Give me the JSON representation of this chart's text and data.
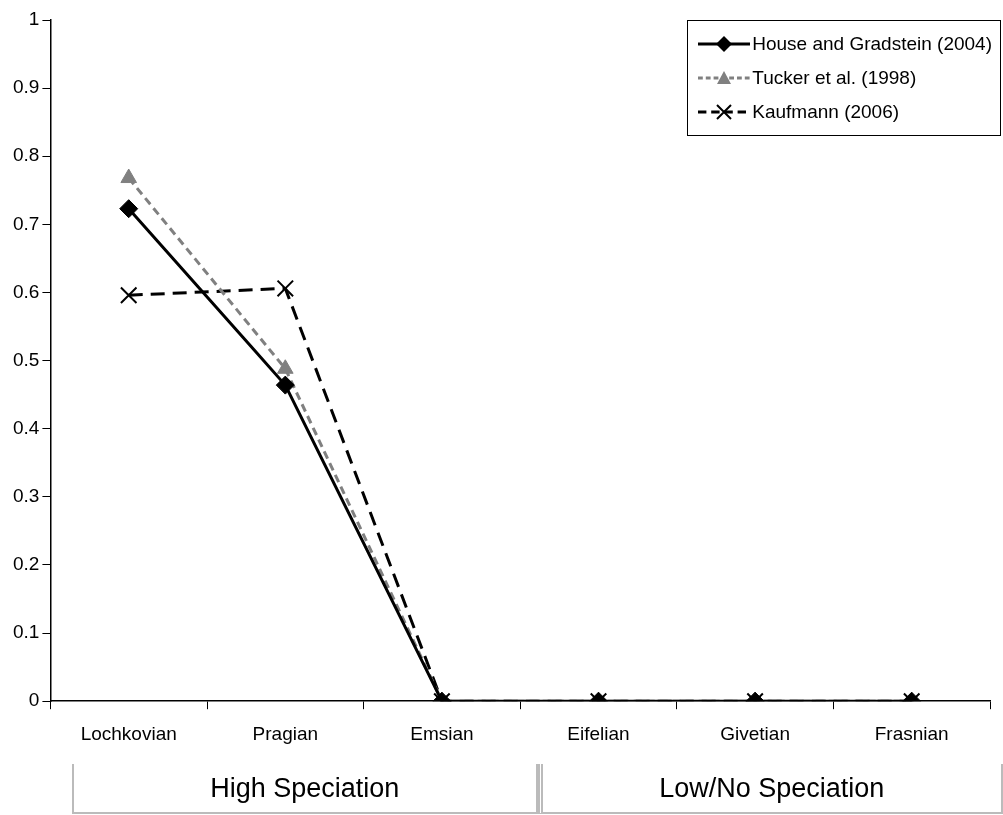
{
  "chart_data": {
    "type": "line",
    "categories": [
      "Lochkovian",
      "Pragian",
      "Emsian",
      "Eifelian",
      "Givetian",
      "Frasnian"
    ],
    "series": [
      {
        "name": "House and Gradstein (2004)",
        "color": "#000000",
        "marker": "diamond",
        "line_style": "solid",
        "values": [
          0.723,
          0.464,
          0,
          0,
          0,
          0
        ]
      },
      {
        "name": "Tucker et al. (1998)",
        "color": "#808080",
        "marker": "triangle",
        "line_style": "dashed",
        "values": [
          0.768,
          0.488,
          0,
          0,
          0,
          0
        ]
      },
      {
        "name": "Kaufmann (2006)",
        "color": "#000000",
        "marker": "cross",
        "line_style": "dashed",
        "values": [
          0.596,
          0.606,
          0,
          0,
          0,
          0
        ]
      }
    ],
    "ylim": [
      0,
      1
    ],
    "yticks": [
      0,
      0.1,
      0.2,
      0.3,
      0.4,
      0.5,
      0.6,
      0.7,
      0.8,
      0.9,
      1
    ],
    "grid": false,
    "legend": "top right",
    "annotations": [
      "High Speciation",
      "Low/No Speciation"
    ]
  }
}
